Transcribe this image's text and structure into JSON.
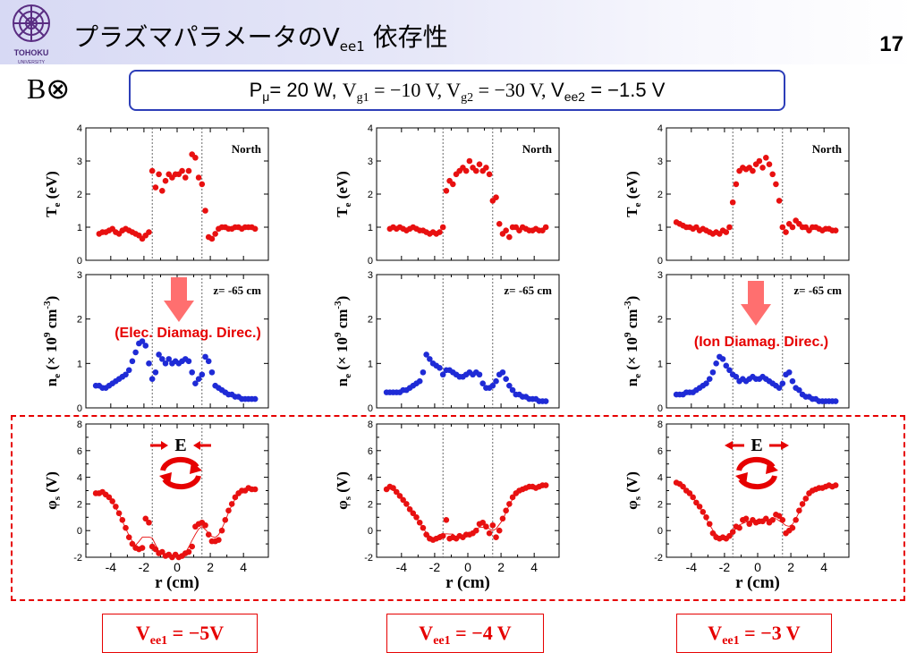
{
  "header": {
    "title_main": "プラズマパラメータのV",
    "title_sub": "ee1",
    "title_tail": " 依存性",
    "page_number": "17",
    "logo_text": "TOHOKU",
    "logo_subtext": "UNIVERSITY"
  },
  "field_label": "B⊗",
  "params": {
    "p_label": "P",
    "p_sub": "μ",
    "p_val": "= 20 W, ",
    "vg1_label": "V",
    "vg1_sub": "g1",
    "vg1_val": " = −10 V, ",
    "vg2_label": "V",
    "vg2_sub": "g2",
    "vg2_val": " = −30 V, ",
    "vee2_label": "V",
    "vee2_sub": "ee2",
    "vee2_val": " = −1.5 V"
  },
  "panels": [
    {
      "vee_label": "V",
      "vee_sub": "ee1",
      "vee_value": " =  −5V"
    },
    {
      "vee_label": "V",
      "vee_sub": "ee1",
      "vee_value": " =  −4 V"
    },
    {
      "vee_label": "V",
      "vee_sub": "ee1",
      "vee_value": " =  −3 V"
    }
  ],
  "annotations": {
    "north": "North",
    "z_pos": "z= -65 cm",
    "elec_diamag": "(Elec. Diamag. Direc.)",
    "ion_diamag": "(Ion Diamag. Direc.)",
    "e_field": "E"
  },
  "axes": {
    "te_ylabel": "T",
    "te_ylabel_sub": "e",
    "te_ylabel_unit": " (eV)",
    "ne_ylabel": "n",
    "ne_ylabel_sub": "e",
    "ne_ylabel_unit": " (× 10",
    "ne_ylabel_sup": "9",
    "ne_ylabel_unit2": " cm",
    "ne_ylabel_sup2": "-3",
    "ne_ylabel_close": ")",
    "phi_ylabel": "φ",
    "phi_ylabel_sub": "s",
    "phi_ylabel_unit": " (V)",
    "xlabel": "r (cm)"
  },
  "chart_data": [
    {
      "type": "scatter",
      "panel": "Vee1=-5V",
      "quantity": "Te",
      "ylim": [
        0,
        4
      ],
      "yticks": [
        0,
        1,
        2,
        3,
        4
      ],
      "xlim": [
        -5.5,
        5.5
      ],
      "dashed_x": [
        -1.5,
        1.5
      ],
      "x": [
        -4.7,
        -4.5,
        -4.3,
        -4.1,
        -3.9,
        -3.7,
        -3.5,
        -3.3,
        -3.1,
        -2.9,
        -2.7,
        -2.5,
        -2.3,
        -2.1,
        -1.9,
        -1.7,
        -1.5,
        -1.3,
        -1.1,
        -0.9,
        -0.7,
        -0.5,
        -0.3,
        -0.1,
        0.1,
        0.3,
        0.5,
        0.7,
        0.9,
        1.1,
        1.3,
        1.5,
        1.7,
        1.9,
        2.1,
        2.3,
        2.5,
        2.7,
        2.9,
        3.1,
        3.3,
        3.5,
        3.7,
        3.9,
        4.1,
        4.3,
        4.5,
        4.7
      ],
      "y": [
        0.8,
        0.85,
        0.85,
        0.9,
        0.95,
        0.85,
        0.8,
        0.9,
        0.95,
        0.9,
        0.85,
        0.8,
        0.75,
        0.65,
        0.75,
        0.85,
        2.7,
        2.2,
        2.6,
        2.1,
        2.4,
        2.6,
        2.5,
        2.6,
        2.6,
        2.7,
        2.5,
        2.7,
        3.2,
        3.1,
        2.5,
        2.3,
        1.5,
        0.7,
        0.65,
        0.8,
        0.95,
        1.0,
        1.0,
        0.95,
        0.95,
        1.0,
        1.0,
        0.95,
        1.0,
        1.0,
        1.0,
        0.95
      ]
    },
    {
      "type": "scatter",
      "panel": "Vee1=-5V",
      "quantity": "ne",
      "ylim": [
        0,
        3
      ],
      "yticks": [
        0,
        1,
        2,
        3
      ],
      "xlim": [
        -5.5,
        5.5
      ],
      "dashed_x": [
        -1.5,
        1.5
      ],
      "x": [
        -4.9,
        -4.7,
        -4.5,
        -4.3,
        -4.1,
        -3.9,
        -3.7,
        -3.5,
        -3.3,
        -3.1,
        -2.9,
        -2.7,
        -2.5,
        -2.3,
        -2.1,
        -1.9,
        -1.7,
        -1.5,
        -1.3,
        -1.1,
        -0.9,
        -0.7,
        -0.5,
        -0.3,
        -0.1,
        0.1,
        0.3,
        0.5,
        0.7,
        0.9,
        1.1,
        1.3,
        1.5,
        1.7,
        1.9,
        2.1,
        2.3,
        2.5,
        2.7,
        2.9,
        3.1,
        3.3,
        3.5,
        3.7,
        3.9,
        4.1,
        4.3,
        4.5,
        4.7
      ],
      "y": [
        0.5,
        0.5,
        0.45,
        0.45,
        0.5,
        0.55,
        0.6,
        0.65,
        0.7,
        0.75,
        0.85,
        1.05,
        1.25,
        1.45,
        1.5,
        1.4,
        1.0,
        0.65,
        0.8,
        1.2,
        1.1,
        1.0,
        1.1,
        1.0,
        1.05,
        1.0,
        1.05,
        1.1,
        1.05,
        0.8,
        0.55,
        0.65,
        0.75,
        1.15,
        1.05,
        0.8,
        0.5,
        0.45,
        0.4,
        0.35,
        0.3,
        0.3,
        0.25,
        0.25,
        0.2,
        0.2,
        0.2,
        0.2,
        0.2
      ]
    },
    {
      "type": "line",
      "panel": "Vee1=-5V",
      "quantity": "phi_s",
      "ylim": [
        -2,
        8
      ],
      "yticks": [
        -2,
        0,
        2,
        4,
        6,
        8
      ],
      "xlim": [
        -5.5,
        5.5
      ],
      "dashed_x": [
        -1.5,
        1.5
      ],
      "x": [
        -4.9,
        -4.7,
        -4.5,
        -4.3,
        -4.1,
        -3.9,
        -3.7,
        -3.5,
        -3.3,
        -3.1,
        -2.9,
        -2.7,
        -2.5,
        -2.3,
        -2.1,
        -1.9,
        -1.7,
        -1.5,
        -1.3,
        -1.1,
        -0.9,
        -0.7,
        -0.5,
        -0.3,
        -0.1,
        0.1,
        0.3,
        0.5,
        0.7,
        0.9,
        1.1,
        1.3,
        1.5,
        1.7,
        1.9,
        2.1,
        2.3,
        2.5,
        2.7,
        2.9,
        3.1,
        3.3,
        3.5,
        3.7,
        3.9,
        4.1,
        4.3,
        4.5,
        4.7
      ],
      "y": [
        2.8,
        2.8,
        2.9,
        2.7,
        2.5,
        2.2,
        1.8,
        1.3,
        0.8,
        0.2,
        -0.5,
        -1.0,
        -1.3,
        -1.4,
        -1.3,
        0.9,
        0.6,
        -1.2,
        -1.4,
        -1.7,
        -1.6,
        -1.9,
        -1.8,
        -2.0,
        -1.8,
        -2.0,
        -1.9,
        -1.7,
        -1.6,
        -1.2,
        0.3,
        0.5,
        0.6,
        0.4,
        -0.3,
        -0.8,
        -0.8,
        -0.7,
        0.0,
        0.8,
        1.5,
        2.0,
        2.5,
        2.8,
        3.0,
        3.0,
        3.2,
        3.1,
        3.1
      ]
    },
    {
      "type": "scatter",
      "panel": "Vee1=-4V",
      "quantity": "Te",
      "ylim": [
        0,
        4
      ],
      "yticks": [
        0,
        1,
        2,
        3,
        4
      ],
      "xlim": [
        -5.5,
        5.5
      ],
      "dashed_x": [
        -1.5,
        1.5
      ],
      "x": [
        -4.7,
        -4.5,
        -4.3,
        -4.1,
        -3.9,
        -3.7,
        -3.5,
        -3.3,
        -3.1,
        -2.9,
        -2.7,
        -2.5,
        -2.3,
        -2.1,
        -1.9,
        -1.7,
        -1.5,
        -1.3,
        -1.1,
        -0.9,
        -0.7,
        -0.5,
        -0.3,
        -0.1,
        0.1,
        0.3,
        0.5,
        0.7,
        0.9,
        1.1,
        1.3,
        1.5,
        1.7,
        1.9,
        2.1,
        2.3,
        2.5,
        2.7,
        2.9,
        3.1,
        3.3,
        3.5,
        3.7,
        3.9,
        4.1,
        4.3,
        4.5,
        4.7
      ],
      "y": [
        0.95,
        1.0,
        0.95,
        1.0,
        0.95,
        0.9,
        0.95,
        1.0,
        0.95,
        0.9,
        0.9,
        0.85,
        0.8,
        0.85,
        0.8,
        0.85,
        1.0,
        2.1,
        2.4,
        2.3,
        2.6,
        2.7,
        2.8,
        2.7,
        3.0,
        2.8,
        2.7,
        2.9,
        2.7,
        2.8,
        2.6,
        1.8,
        1.9,
        1.1,
        0.8,
        0.9,
        0.7,
        1.0,
        1.0,
        0.9,
        1.0,
        0.95,
        0.9,
        0.9,
        0.95,
        0.9,
        0.9,
        1.0
      ]
    },
    {
      "type": "scatter",
      "panel": "Vee1=-4V",
      "quantity": "ne",
      "ylim": [
        0,
        3
      ],
      "yticks": [
        0,
        1,
        2,
        3
      ],
      "xlim": [
        -5.5,
        5.5
      ],
      "dashed_x": [
        -1.5,
        1.5
      ],
      "x": [
        -4.9,
        -4.7,
        -4.5,
        -4.3,
        -4.1,
        -3.9,
        -3.7,
        -3.5,
        -3.3,
        -3.1,
        -2.9,
        -2.7,
        -2.5,
        -2.3,
        -2.1,
        -1.9,
        -1.7,
        -1.5,
        -1.3,
        -1.1,
        -0.9,
        -0.7,
        -0.5,
        -0.3,
        -0.1,
        0.1,
        0.3,
        0.5,
        0.7,
        0.9,
        1.1,
        1.3,
        1.5,
        1.7,
        1.9,
        2.1,
        2.3,
        2.5,
        2.7,
        2.9,
        3.1,
        3.3,
        3.5,
        3.7,
        3.9,
        4.1,
        4.3,
        4.5,
        4.7
      ],
      "y": [
        0.35,
        0.35,
        0.35,
        0.35,
        0.35,
        0.4,
        0.4,
        0.45,
        0.5,
        0.55,
        0.6,
        0.8,
        1.2,
        1.1,
        1.0,
        0.95,
        0.9,
        0.75,
        0.85,
        0.85,
        0.8,
        0.75,
        0.7,
        0.7,
        0.75,
        0.8,
        0.75,
        0.8,
        0.75,
        0.55,
        0.45,
        0.45,
        0.5,
        0.6,
        0.75,
        0.8,
        0.65,
        0.5,
        0.4,
        0.3,
        0.3,
        0.25,
        0.25,
        0.2,
        0.2,
        0.2,
        0.15,
        0.15,
        0.15
      ]
    },
    {
      "type": "line",
      "panel": "Vee1=-4V",
      "quantity": "phi_s",
      "ylim": [
        -2,
        8
      ],
      "yticks": [
        -2,
        0,
        2,
        4,
        6,
        8
      ],
      "xlim": [
        -5.5,
        5.5
      ],
      "dashed_x": [
        -1.5,
        1.5
      ],
      "x": [
        -4.9,
        -4.7,
        -4.5,
        -4.3,
        -4.1,
        -3.9,
        -3.7,
        -3.5,
        -3.3,
        -3.1,
        -2.9,
        -2.7,
        -2.5,
        -2.3,
        -2.1,
        -1.9,
        -1.7,
        -1.5,
        -1.3,
        -1.1,
        -0.9,
        -0.7,
        -0.5,
        -0.3,
        -0.1,
        0.1,
        0.3,
        0.5,
        0.7,
        0.9,
        1.1,
        1.3,
        1.5,
        1.7,
        1.9,
        2.1,
        2.3,
        2.5,
        2.7,
        2.9,
        3.1,
        3.3,
        3.5,
        3.7,
        3.9,
        4.1,
        4.3,
        4.5,
        4.7
      ],
      "y": [
        3.1,
        3.3,
        3.2,
        2.9,
        2.6,
        2.3,
        2.0,
        1.6,
        1.3,
        1.0,
        0.6,
        0.2,
        -0.3,
        -0.6,
        -0.7,
        -0.6,
        -0.5,
        -0.4,
        0.8,
        -0.6,
        -0.5,
        -0.6,
        -0.4,
        -0.5,
        -0.3,
        -0.3,
        -0.2,
        0.0,
        0.5,
        0.6,
        0.3,
        -0.2,
        0.4,
        -0.5,
        0.0,
        0.9,
        1.5,
        2.0,
        2.5,
        2.8,
        3.0,
        3.1,
        3.2,
        3.3,
        3.3,
        3.2,
        3.3,
        3.4,
        3.4
      ]
    },
    {
      "type": "scatter",
      "panel": "Vee1=-3V",
      "quantity": "Te",
      "ylim": [
        0,
        4
      ],
      "yticks": [
        0,
        1,
        2,
        3,
        4
      ],
      "xlim": [
        -5.5,
        5.5
      ],
      "dashed_x": [
        -1.5,
        1.5
      ],
      "x": [
        -4.9,
        -4.7,
        -4.5,
        -4.3,
        -4.1,
        -3.9,
        -3.7,
        -3.5,
        -3.3,
        -3.1,
        -2.9,
        -2.7,
        -2.5,
        -2.3,
        -2.1,
        -1.9,
        -1.7,
        -1.5,
        -1.3,
        -1.1,
        -0.9,
        -0.7,
        -0.5,
        -0.3,
        -0.1,
        0.1,
        0.3,
        0.5,
        0.7,
        0.9,
        1.1,
        1.3,
        1.5,
        1.7,
        1.9,
        2.1,
        2.3,
        2.5,
        2.7,
        2.9,
        3.1,
        3.3,
        3.5,
        3.7,
        3.9,
        4.1,
        4.3,
        4.5,
        4.7
      ],
      "y": [
        1.15,
        1.1,
        1.05,
        1.0,
        1.0,
        0.95,
        1.0,
        0.9,
        0.95,
        0.9,
        0.85,
        0.8,
        0.85,
        0.8,
        0.9,
        0.85,
        1.0,
        1.75,
        2.3,
        2.7,
        2.8,
        2.75,
        2.8,
        2.7,
        2.9,
        3.0,
        2.8,
        3.1,
        2.9,
        2.6,
        2.3,
        1.8,
        1.0,
        0.85,
        1.1,
        1.0,
        1.2,
        1.1,
        1.0,
        1.0,
        0.9,
        1.0,
        1.0,
        0.95,
        0.9,
        0.95,
        0.95,
        0.9,
        0.9
      ]
    },
    {
      "type": "scatter",
      "panel": "Vee1=-3V",
      "quantity": "ne",
      "ylim": [
        0,
        3
      ],
      "yticks": [
        0,
        1,
        2,
        3
      ],
      "xlim": [
        -5.5,
        5.5
      ],
      "dashed_x": [
        -1.5,
        1.5
      ],
      "x": [
        -4.9,
        -4.7,
        -4.5,
        -4.3,
        -4.1,
        -3.9,
        -3.7,
        -3.5,
        -3.3,
        -3.1,
        -2.9,
        -2.7,
        -2.5,
        -2.3,
        -2.1,
        -1.9,
        -1.7,
        -1.5,
        -1.3,
        -1.1,
        -0.9,
        -0.7,
        -0.5,
        -0.3,
        -0.1,
        0.1,
        0.3,
        0.5,
        0.7,
        0.9,
        1.1,
        1.3,
        1.5,
        1.7,
        1.9,
        2.1,
        2.3,
        2.5,
        2.7,
        2.9,
        3.1,
        3.3,
        3.5,
        3.7,
        3.9,
        4.1,
        4.3,
        4.5,
        4.7
      ],
      "y": [
        0.3,
        0.3,
        0.3,
        0.35,
        0.35,
        0.35,
        0.4,
        0.45,
        0.5,
        0.55,
        0.65,
        0.8,
        1.0,
        1.15,
        1.1,
        0.95,
        0.85,
        0.75,
        0.7,
        0.6,
        0.65,
        0.6,
        0.65,
        0.7,
        0.65,
        0.65,
        0.7,
        0.65,
        0.6,
        0.55,
        0.5,
        0.45,
        0.55,
        0.75,
        0.8,
        0.6,
        0.45,
        0.4,
        0.3,
        0.25,
        0.25,
        0.2,
        0.2,
        0.15,
        0.15,
        0.15,
        0.15,
        0.15,
        0.15
      ]
    },
    {
      "type": "line",
      "panel": "Vee1=-3V",
      "quantity": "phi_s",
      "ylim": [
        -2,
        8
      ],
      "yticks": [
        -2,
        0,
        2,
        4,
        6,
        8
      ],
      "xlim": [
        -5.5,
        5.5
      ],
      "dashed_x": [
        -1.5,
        1.5
      ],
      "x": [
        -4.9,
        -4.7,
        -4.5,
        -4.3,
        -4.1,
        -3.9,
        -3.7,
        -3.5,
        -3.3,
        -3.1,
        -2.9,
        -2.7,
        -2.5,
        -2.3,
        -2.1,
        -1.9,
        -1.7,
        -1.5,
        -1.3,
        -1.1,
        -0.9,
        -0.7,
        -0.5,
        -0.3,
        -0.1,
        0.1,
        0.3,
        0.5,
        0.7,
        0.9,
        1.1,
        1.3,
        1.5,
        1.7,
        1.9,
        2.1,
        2.3,
        2.5,
        2.7,
        2.9,
        3.1,
        3.3,
        3.5,
        3.7,
        3.9,
        4.1,
        4.3,
        4.5,
        4.7
      ],
      "y": [
        3.6,
        3.5,
        3.3,
        3.0,
        2.8,
        2.5,
        2.1,
        1.8,
        1.4,
        1.0,
        0.5,
        -0.2,
        -0.5,
        -0.6,
        -0.5,
        -0.6,
        -0.4,
        -0.1,
        0.3,
        0.2,
        0.8,
        0.9,
        0.5,
        0.8,
        0.6,
        0.7,
        0.7,
        0.9,
        0.6,
        0.8,
        1.2,
        1.1,
        0.8,
        -0.2,
        0.0,
        0.2,
        0.8,
        1.5,
        2.0,
        2.4,
        2.8,
        3.0,
        3.1,
        3.2,
        3.2,
        3.3,
        3.4,
        3.3,
        3.4
      ]
    }
  ]
}
